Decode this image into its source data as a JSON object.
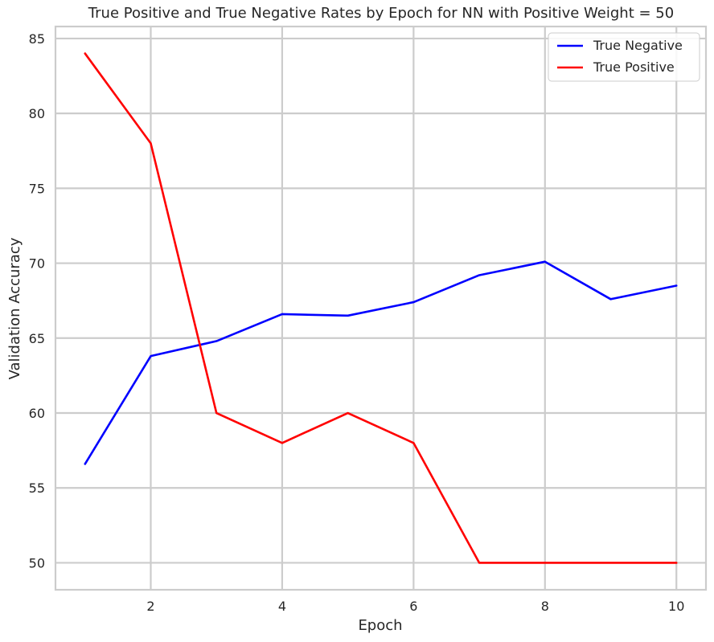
{
  "chart_data": {
    "type": "line",
    "title": "True Positive and True Negative Rates by Epoch for NN with Positive Weight = 50",
    "xlabel": "Epoch",
    "ylabel": "Validation Accuracy",
    "x": [
      1,
      2,
      3,
      4,
      5,
      6,
      7,
      8,
      9,
      10
    ],
    "xticks": [
      2,
      4,
      6,
      8,
      10
    ],
    "yticks": [
      50,
      55,
      60,
      65,
      70,
      75,
      80,
      85
    ],
    "xlim": [
      0.55,
      10.45
    ],
    "ylim": [
      48.2,
      85.8
    ],
    "grid": true,
    "legend_position": "top-right",
    "series": [
      {
        "name": "True Negative",
        "color": "#0000ff",
        "values": [
          56.6,
          63.8,
          64.8,
          66.6,
          66.5,
          67.4,
          69.2,
          70.1,
          67.6,
          68.5
        ]
      },
      {
        "name": "True Positive",
        "color": "#ff0000",
        "values": [
          84.0,
          78.0,
          60.0,
          58.0,
          60.0,
          58.0,
          50.0,
          50.0,
          50.0,
          50.0
        ]
      }
    ]
  }
}
